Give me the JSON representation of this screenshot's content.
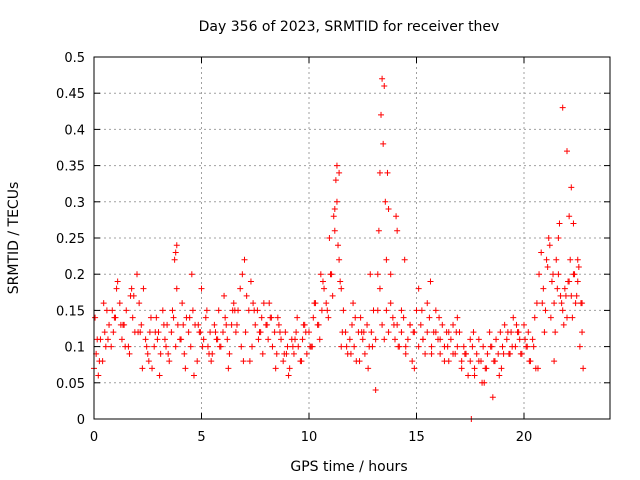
{
  "chart_data": {
    "type": "scatter",
    "title": "Day 356 of 2023, SRMTID for receiver thev",
    "xlabel": "GPS time / hours",
    "ylabel": "SRMTID / TECUs",
    "xlim": [
      0,
      24
    ],
    "ylim": [
      0,
      0.5
    ],
    "grid": true,
    "marker": "plus",
    "marker_color": "#ff0000",
    "x_ticks": [
      0,
      5,
      10,
      15,
      20
    ],
    "x_tick_labels": [
      "0",
      "5",
      "10",
      "15",
      "20"
    ],
    "y_ticks": [
      0,
      0.05,
      0.1,
      0.15,
      0.2,
      0.25,
      0.3,
      0.35,
      0.4,
      0.45,
      0.5
    ],
    "y_tick_labels": [
      "0",
      "0.05",
      "0.1",
      "0.15",
      "0.2",
      "0.25",
      "0.3",
      "0.35",
      "0.4",
      "0.45",
      "0.5"
    ],
    "series": [
      {
        "name": "SRMTID",
        "x": [
          0.0,
          0.1,
          0.2,
          0.3,
          0.4,
          0.5,
          0.6,
          0.7,
          0.8,
          0.9,
          1.0,
          1.1,
          1.2,
          1.3,
          1.4,
          1.5,
          1.6,
          1.7,
          1.8,
          1.9,
          2.0,
          2.1,
          2.2,
          2.3,
          2.4,
          2.5,
          2.6,
          2.7,
          2.8,
          2.9,
          3.0,
          3.1,
          3.2,
          3.3,
          3.4,
          3.5,
          3.6,
          3.7,
          3.8,
          3.9,
          4.0,
          4.1,
          4.2,
          4.3,
          4.4,
          4.5,
          4.6,
          4.7,
          4.8,
          4.9,
          5.0,
          5.1,
          5.2,
          5.3,
          5.4,
          5.5,
          5.6,
          5.7,
          5.8,
          5.9,
          6.0,
          6.1,
          6.2,
          6.3,
          6.4,
          6.5,
          6.6,
          6.7,
          6.8,
          6.9,
          7.0,
          7.1,
          7.2,
          7.3,
          7.4,
          7.5,
          7.6,
          7.7,
          7.8,
          7.9,
          8.0,
          8.1,
          8.2,
          8.3,
          8.4,
          8.5,
          8.6,
          8.7,
          8.8,
          8.9,
          9.0,
          9.1,
          9.2,
          9.3,
          9.4,
          9.5,
          9.6,
          9.7,
          9.8,
          9.9,
          10.0,
          10.1,
          10.2,
          10.3,
          10.4,
          10.5,
          10.6,
          10.7,
          10.8,
          10.9,
          11.0,
          11.1,
          11.2,
          11.3,
          11.4,
          11.5,
          11.6,
          11.7,
          11.8,
          11.9,
          12.0,
          12.1,
          12.2,
          12.3,
          12.4,
          12.5,
          12.6,
          12.7,
          12.8,
          12.9,
          13.0,
          13.1,
          13.2,
          13.3,
          13.4,
          13.5,
          13.6,
          13.7,
          13.8,
          13.9,
          14.0,
          14.1,
          14.2,
          14.3,
          14.4,
          14.5,
          14.6,
          14.7,
          14.8,
          14.9,
          15.0,
          15.1,
          15.2,
          15.3,
          15.4,
          15.5,
          15.6,
          15.7,
          15.8,
          15.9,
          16.0,
          16.1,
          16.2,
          16.3,
          16.4,
          16.5,
          16.6,
          16.7,
          16.8,
          16.9,
          17.0,
          17.1,
          17.2,
          17.3,
          17.4,
          17.5,
          17.6,
          17.7,
          17.8,
          17.9,
          18.0,
          18.1,
          18.2,
          18.3,
          18.4,
          18.5,
          18.6,
          18.7,
          18.8,
          18.9,
          19.0,
          19.1,
          19.2,
          19.3,
          19.4,
          19.5,
          19.6,
          19.7,
          19.8,
          19.9,
          20.0,
          20.1,
          20.2,
          20.3,
          20.4,
          20.5,
          20.6,
          20.7,
          20.8,
          20.9,
          21.0,
          21.1,
          21.2,
          21.3,
          21.4,
          21.5,
          21.6,
          21.7,
          21.8,
          21.9,
          22.0,
          22.1,
          22.2,
          22.3,
          22.4,
          22.5,
          22.6,
          22.7,
          0.05,
          0.25,
          0.45,
          0.65,
          0.85,
          1.05,
          1.25,
          1.45,
          1.65,
          1.85,
          2.05,
          2.25,
          2.45,
          2.65,
          2.85,
          3.05,
          3.25,
          3.45,
          3.65,
          3.85,
          4.05,
          4.25,
          4.45,
          4.65,
          4.85,
          5.05,
          5.25,
          5.45,
          5.65,
          5.85,
          6.05,
          6.25,
          6.45,
          6.65,
          6.85,
          7.05,
          7.25,
          7.45,
          7.65,
          7.85,
          8.05,
          8.25,
          8.45,
          8.65,
          8.85,
          9.05,
          9.25,
          9.45,
          9.65,
          9.85,
          10.05,
          10.25,
          10.45,
          10.65,
          10.85,
          11.05,
          11.15,
          11.25,
          11.35,
          11.45,
          11.55,
          11.75,
          11.95,
          12.15,
          12.35,
          12.55,
          12.75,
          12.95,
          13.1,
          13.2,
          13.3,
          13.35,
          13.4,
          13.45,
          13.5,
          13.55,
          13.6,
          13.7,
          13.8,
          13.95,
          14.1,
          14.3,
          14.5,
          14.7,
          14.9,
          15.1,
          15.3,
          15.5,
          15.7,
          15.9,
          16.1,
          16.3,
          16.5,
          16.7,
          16.9,
          17.1,
          17.3,
          17.5,
          17.7,
          17.9,
          18.05,
          18.25,
          18.45,
          18.65,
          18.85,
          19.05,
          19.25,
          19.45,
          19.65,
          19.85,
          20.05,
          20.25,
          20.45,
          20.65,
          20.85,
          21.05,
          21.15,
          21.25,
          21.35,
          21.45,
          21.55,
          21.65,
          21.75,
          21.85,
          21.95,
          22.05,
          22.15,
          22.25,
          22.35,
          22.45,
          22.55,
          22.65,
          22.75,
          0.15,
          0.55,
          0.95,
          1.35,
          1.75,
          2.15,
          2.55,
          2.95,
          3.35,
          3.75,
          3.8,
          3.85,
          4.15,
          4.55,
          4.95,
          5.35,
          5.75,
          6.15,
          6.55,
          6.95,
          7.35,
          7.75,
          8.15,
          8.55,
          8.95,
          9.35,
          9.75,
          10.15,
          10.55,
          10.95,
          11.2,
          11.3,
          11.4,
          11.5,
          12.05,
          12.45,
          12.85,
          13.25,
          13.65,
          14.05,
          14.15,
          14.45,
          14.85,
          15.25,
          15.65,
          16.05,
          16.45,
          16.85,
          17.25,
          17.65,
          17.55,
          18.15,
          18.55,
          18.95,
          19.35,
          19.75,
          20.15,
          20.55,
          20.95,
          21.4,
          21.6,
          21.8,
          22.0,
          22.1,
          22.2,
          22.3,
          22.5,
          22.7
        ],
        "y": [
          0.07,
          0.09,
          0.06,
          0.11,
          0.08,
          0.12,
          0.15,
          0.13,
          0.1,
          0.12,
          0.14,
          0.19,
          0.16,
          0.11,
          0.13,
          0.15,
          0.1,
          0.17,
          0.14,
          0.12,
          0.2,
          0.16,
          0.13,
          0.18,
          0.11,
          0.09,
          0.12,
          0.07,
          0.1,
          0.14,
          0.12,
          0.09,
          0.15,
          0.11,
          0.13,
          0.08,
          0.12,
          0.14,
          0.1,
          0.13,
          0.11,
          0.16,
          0.09,
          0.14,
          0.12,
          0.1,
          0.15,
          0.13,
          0.08,
          0.12,
          0.18,
          0.11,
          0.14,
          0.1,
          0.12,
          0.09,
          0.13,
          0.11,
          0.15,
          0.1,
          0.12,
          0.14,
          0.11,
          0.09,
          0.13,
          0.16,
          0.12,
          0.15,
          0.18,
          0.2,
          0.22,
          0.17,
          0.15,
          0.19,
          0.16,
          0.13,
          0.15,
          0.12,
          0.14,
          0.16,
          0.13,
          0.11,
          0.14,
          0.1,
          0.12,
          0.09,
          0.13,
          0.11,
          0.08,
          0.12,
          0.1,
          0.07,
          0.11,
          0.09,
          0.12,
          0.1,
          0.08,
          0.11,
          0.13,
          0.09,
          0.12,
          0.1,
          0.14,
          0.16,
          0.13,
          0.11,
          0.15,
          0.18,
          0.16,
          0.14,
          0.2,
          0.17,
          0.26,
          0.3,
          0.22,
          0.18,
          0.15,
          0.12,
          0.09,
          0.11,
          0.13,
          0.1,
          0.08,
          0.12,
          0.14,
          0.11,
          0.09,
          0.13,
          0.1,
          0.12,
          0.15,
          0.11,
          0.2,
          0.18,
          0.13,
          0.11,
          0.15,
          0.12,
          0.16,
          0.14,
          0.11,
          0.13,
          0.1,
          0.12,
          0.14,
          0.09,
          0.11,
          0.13,
          0.08,
          0.12,
          0.15,
          0.1,
          0.13,
          0.11,
          0.09,
          0.12,
          0.14,
          0.1,
          0.12,
          0.15,
          0.11,
          0.09,
          0.13,
          0.1,
          0.12,
          0.08,
          0.11,
          0.13,
          0.09,
          0.1,
          0.12,
          0.08,
          0.1,
          0.09,
          0.06,
          0.08,
          0.1,
          0.07,
          0.09,
          0.11,
          0.08,
          0.1,
          0.07,
          0.09,
          0.12,
          0.1,
          0.08,
          0.11,
          0.09,
          0.12,
          0.1,
          0.13,
          0.11,
          0.09,
          0.12,
          0.14,
          0.1,
          0.12,
          0.11,
          0.09,
          0.13,
          0.1,
          0.12,
          0.08,
          0.11,
          0.14,
          0.16,
          0.2,
          0.23,
          0.18,
          0.15,
          0.21,
          0.24,
          0.19,
          0.16,
          0.22,
          0.2,
          0.17,
          0.15,
          0.18,
          0.14,
          0.19,
          0.17,
          0.2,
          0.16,
          0.19,
          0.1,
          0.12,
          0.14,
          0.08,
          0.16,
          0.11,
          0.15,
          0.18,
          0.13,
          0.1,
          0.09,
          0.17,
          0.12,
          0.07,
          0.1,
          0.14,
          0.12,
          0.06,
          0.13,
          0.09,
          0.15,
          0.18,
          0.11,
          0.07,
          0.14,
          0.06,
          0.13,
          0.1,
          0.15,
          0.08,
          0.12,
          0.1,
          0.17,
          0.07,
          0.15,
          0.13,
          0.1,
          0.12,
          0.08,
          0.15,
          0.11,
          0.09,
          0.13,
          0.14,
          0.07,
          0.12,
          0.09,
          0.06,
          0.1,
          0.14,
          0.08,
          0.12,
          0.1,
          0.16,
          0.13,
          0.19,
          0.15,
          0.2,
          0.28,
          0.33,
          0.24,
          0.19,
          0.12,
          0.1,
          0.09,
          0.14,
          0.08,
          0.12,
          0.07,
          0.1,
          0.04,
          0.15,
          0.34,
          0.42,
          0.47,
          0.38,
          0.46,
          0.3,
          0.22,
          0.29,
          0.2,
          0.13,
          0.26,
          0.15,
          0.1,
          0.13,
          0.07,
          0.18,
          0.11,
          0.16,
          0.09,
          0.12,
          0.11,
          0.08,
          0.12,
          0.09,
          0.14,
          0.07,
          0.09,
          0.11,
          0.06,
          0.08,
          0.05,
          0.07,
          0.1,
          0.08,
          0.06,
          0.09,
          0.12,
          0.1,
          0.13,
          0.09,
          0.11,
          0.08,
          0.1,
          0.07,
          0.16,
          0.22,
          0.25,
          0.14,
          0.2,
          0.12,
          0.18,
          0.27,
          0.16,
          0.13,
          0.17,
          0.19,
          0.22,
          0.14,
          0.2,
          0.17,
          0.21,
          0.16,
          0.07,
          0.11,
          0.1,
          0.14,
          0.13,
          0.18,
          0.12,
          0.08,
          0.11,
          0.1,
          0.22,
          0.23,
          0.24,
          0.13,
          0.2,
          0.12,
          0.09,
          0.11,
          0.13,
          0.15,
          0.08,
          0.1,
          0.12,
          0.16,
          0.14,
          0.09,
          0.11,
          0.13,
          0.1,
          0.2,
          0.25,
          0.29,
          0.35,
          0.34,
          0.1,
          0.16,
          0.12,
          0.2,
          0.26,
          0.34,
          0.28,
          0.1,
          0.22,
          0.12,
          0.15,
          0.19,
          0.14,
          0.1,
          0.12,
          0.09,
          0.12,
          0.0,
          0.05,
          0.03,
          0.07,
          0.09,
          0.12,
          0.1,
          0.07,
          0.12,
          0.08,
          0.25,
          0.43,
          0.37,
          0.28,
          0.32,
          0.27,
          0.22,
          0.16
        ]
      }
    ]
  }
}
